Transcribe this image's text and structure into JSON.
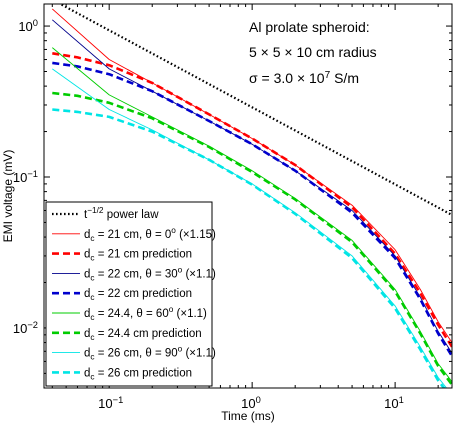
{
  "chart_data": {
    "type": "line",
    "xlabel": "Time (ms)",
    "ylabel": "EMI voltage (mV)",
    "xscale": "log",
    "yscale": "log",
    "xlim": [
      0.035,
      25
    ],
    "ylim": [
      0.004,
      1.4
    ],
    "xticks": [
      {
        "value": 0.1,
        "base": "10",
        "exp": "−1"
      },
      {
        "value": 1,
        "base": "10",
        "exp": "0"
      },
      {
        "value": 10,
        "base": "10",
        "exp": "1"
      }
    ],
    "yticks": [
      {
        "value": 0.01,
        "base": "10",
        "exp": "−2"
      },
      {
        "value": 0.1,
        "base": "10",
        "exp": "−1"
      },
      {
        "value": 1,
        "base": "10",
        "exp": "0"
      }
    ],
    "grid": false,
    "legend_position": "bottom-left",
    "annotations": [
      {
        "text": "Al prolate spheroid:"
      },
      {
        "text": "5 × 5 × 10 cm radius"
      },
      {
        "text": "σ = 3.0 × 10",
        "sup": "7",
        "after": " S/m"
      }
    ],
    "series": [
      {
        "name": "t^{-1/2} power law",
        "legend": [
          {
            "t": "t"
          },
          {
            "sup": "−1/2"
          },
          {
            "t": " power law"
          }
        ],
        "color": "#000000",
        "style": "dotted",
        "width": 2.2,
        "x": [
          0.035,
          25
        ],
        "y": [
          1.6,
          0.056
        ]
      },
      {
        "name": "d_c = 21 cm, θ = 0^o (×1.15)",
        "legend": [
          {
            "t": "d"
          },
          {
            "sub": "c"
          },
          {
            "t": " = 21 cm, θ = 0"
          },
          {
            "sup": "o"
          },
          {
            "t": " (×1.15)"
          }
        ],
        "color": "#ff0000",
        "style": "solid",
        "width": 0.9,
        "x": [
          0.04,
          0.1,
          0.2,
          0.5,
          1,
          2,
          5,
          10,
          15,
          20,
          25
        ],
        "y": [
          1.3,
          0.6,
          0.42,
          0.26,
          0.18,
          0.12,
          0.065,
          0.033,
          0.018,
          0.011,
          0.008
        ]
      },
      {
        "name": "d_c = 21 cm prediction",
        "legend": [
          {
            "t": "d"
          },
          {
            "sub": "c"
          },
          {
            "t": " = 21 cm prediction"
          }
        ],
        "color": "#ff0000",
        "style": "dashed",
        "width": 2.6,
        "x": [
          0.04,
          0.06,
          0.1,
          0.2,
          0.5,
          1,
          2,
          5,
          10,
          15,
          20,
          25
        ],
        "y": [
          0.66,
          0.62,
          0.55,
          0.42,
          0.26,
          0.18,
          0.12,
          0.063,
          0.031,
          0.017,
          0.0105,
          0.0075
        ]
      },
      {
        "name": "d_c = 22 cm, θ = 30^o (×1.1)",
        "legend": [
          {
            "t": "d"
          },
          {
            "sub": "c"
          },
          {
            "t": " = 22 cm, θ = 30"
          },
          {
            "sup": "o"
          },
          {
            "t": " (×1.1)"
          }
        ],
        "color": "#00008b",
        "style": "solid",
        "width": 0.9,
        "x": [
          0.04,
          0.1,
          0.2,
          0.5,
          1,
          2,
          5,
          10,
          15,
          20,
          25
        ],
        "y": [
          1.1,
          0.52,
          0.37,
          0.235,
          0.165,
          0.11,
          0.06,
          0.03,
          0.016,
          0.0095,
          0.0068
        ]
      },
      {
        "name": "d_c = 22 cm prediction",
        "legend": [
          {
            "t": "d"
          },
          {
            "sub": "c"
          },
          {
            "t": " = 22 cm prediction"
          }
        ],
        "color": "#0000cd",
        "style": "dashed",
        "width": 2.6,
        "x": [
          0.04,
          0.06,
          0.1,
          0.2,
          0.5,
          1,
          2,
          5,
          10,
          15,
          20,
          25
        ],
        "y": [
          0.57,
          0.54,
          0.48,
          0.37,
          0.235,
          0.165,
          0.11,
          0.058,
          0.029,
          0.0155,
          0.0092,
          0.0065
        ]
      },
      {
        "name": "d_c = 24.4, θ = 60^o (×1.1)",
        "legend": [
          {
            "t": "d"
          },
          {
            "sub": "c"
          },
          {
            "t": " = 24.4, θ = 60"
          },
          {
            "sup": "o"
          },
          {
            "t": " (×1.1)"
          }
        ],
        "color": "#00cc00",
        "style": "solid",
        "width": 0.9,
        "x": [
          0.04,
          0.1,
          0.2,
          0.5,
          1,
          2,
          5,
          10,
          15,
          20,
          25
        ],
        "y": [
          0.72,
          0.35,
          0.25,
          0.16,
          0.11,
          0.072,
          0.038,
          0.018,
          0.0095,
          0.0058,
          0.0044
        ]
      },
      {
        "name": "d_c = 24.4 cm prediction",
        "legend": [
          {
            "t": "d"
          },
          {
            "sub": "c"
          },
          {
            "t": " = 24.4 cm prediction"
          }
        ],
        "color": "#00cc00",
        "style": "dashed",
        "width": 2.6,
        "x": [
          0.04,
          0.06,
          0.1,
          0.2,
          0.5,
          1,
          2,
          5,
          10,
          15,
          20,
          25
        ],
        "y": [
          0.36,
          0.345,
          0.31,
          0.245,
          0.158,
          0.108,
          0.071,
          0.037,
          0.0175,
          0.0092,
          0.0056,
          0.0042
        ]
      },
      {
        "name": "d_c = 26 cm, θ = 90^o (×1.1)",
        "legend": [
          {
            "t": "d"
          },
          {
            "sub": "c"
          },
          {
            "t": " = 26 cm, θ = 90"
          },
          {
            "sup": "o"
          },
          {
            "t": " (×1.1)"
          }
        ],
        "color": "#00e5e5",
        "style": "solid",
        "width": 0.9,
        "x": [
          0.04,
          0.1,
          0.2,
          0.5,
          1,
          2,
          5,
          10,
          15,
          20,
          25
        ],
        "y": [
          0.52,
          0.28,
          0.205,
          0.13,
          0.09,
          0.058,
          0.03,
          0.014,
          0.0075,
          0.0047,
          0.0036
        ]
      },
      {
        "name": "d_c = 26 cm prediction",
        "legend": [
          {
            "t": "d"
          },
          {
            "sub": "c"
          },
          {
            "t": " = 26 cm prediction"
          }
        ],
        "color": "#00e5e5",
        "style": "dashed",
        "width": 2.6,
        "x": [
          0.04,
          0.06,
          0.1,
          0.2,
          0.5,
          1,
          2,
          5,
          10,
          15,
          20,
          25
        ],
        "y": [
          0.28,
          0.27,
          0.25,
          0.2,
          0.13,
          0.089,
          0.057,
          0.029,
          0.0135,
          0.0072,
          0.0045,
          0.0034
        ]
      }
    ]
  }
}
